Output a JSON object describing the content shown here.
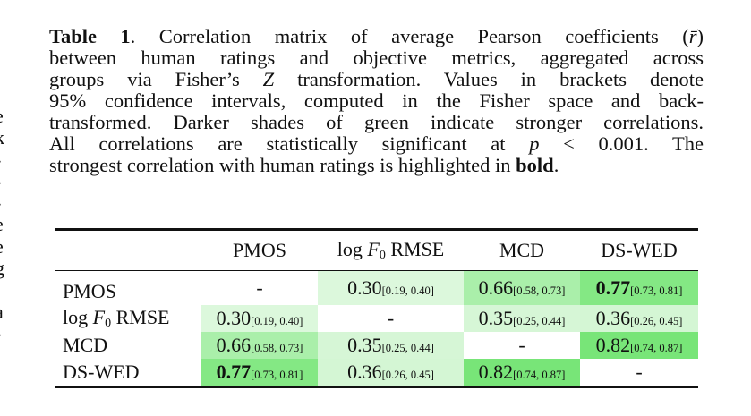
{
  "left_column_fragments": [
    "e",
    "k",
    "-",
    "-",
    "-",
    "e",
    "e",
    "g",
    "",
    "a",
    "-"
  ],
  "caption": {
    "label": "Table 1",
    "l1a": ".    Correlation matrix of average Pearson coefficients (",
    "l1r": "r̄",
    "l1b": ")",
    "l2": "between human ratings and objective metrics, aggregated across",
    "l3a": "groups via Fisher’s ",
    "l3z": "Z",
    "l3b": " transformation.  Values in brackets denote",
    "l4": "95% confidence intervals, computed in the Fisher space and back-",
    "l5": "transformed. Darker shades of green indicate stronger correlations.",
    "l6a": "All correlations are statistically significant at ",
    "l6p": "p",
    "l6b": " < 0.001.  The",
    "l7a": "strongest correlation with human ratings is highlighted in ",
    "l7bold": "bold",
    "l7c": "."
  },
  "table": {
    "headers": [
      {
        "pre": "",
        "var": "",
        "sub": "",
        "post": ""
      },
      {
        "pre": "PMOS",
        "var": "",
        "sub": "",
        "post": ""
      },
      {
        "pre": "log ",
        "var": "F",
        "sub": "0",
        "post": " RMSE"
      },
      {
        "pre": "MCD",
        "var": "",
        "sub": "",
        "post": ""
      },
      {
        "pre": "DS-WED",
        "var": "",
        "sub": "",
        "post": ""
      }
    ],
    "rows": [
      {
        "label": {
          "pre": "PMOS",
          "var": "",
          "sub": "",
          "post": ""
        },
        "cells": [
          {
            "value": "-",
            "ci": "",
            "bold": false,
            "color": "#ffffff"
          },
          {
            "value": "0.30",
            "ci": "[0.19, 0.40]",
            "bold": false,
            "color": "#dcf8dc"
          },
          {
            "value": "0.66",
            "ci": "[0.58, 0.73]",
            "bold": false,
            "color": "#aaefaa"
          },
          {
            "value": "0.77",
            "ci": "[0.73, 0.81]",
            "bold": true,
            "color": "#84e884"
          }
        ]
      },
      {
        "label": {
          "pre": "log ",
          "var": "F",
          "sub": "0",
          "post": " RMSE"
        },
        "cells": [
          {
            "value": "0.30",
            "ci": "[0.19, 0.40]",
            "bold": false,
            "color": "#dcf8dc"
          },
          {
            "value": "-",
            "ci": "",
            "bold": false,
            "color": "#ffffff"
          },
          {
            "value": "0.35",
            "ci": "[0.25, 0.44]",
            "bold": false,
            "color": "#d6f6d6"
          },
          {
            "value": "0.36",
            "ci": "[0.26, 0.45]",
            "bold": false,
            "color": "#d4f6d4"
          }
        ]
      },
      {
        "label": {
          "pre": "MCD",
          "var": "",
          "sub": "",
          "post": ""
        },
        "cells": [
          {
            "value": "0.66",
            "ci": "[0.58, 0.73]",
            "bold": false,
            "color": "#aaefaa"
          },
          {
            "value": "0.35",
            "ci": "[0.25, 0.44]",
            "bold": false,
            "color": "#d6f6d6"
          },
          {
            "value": "-",
            "ci": "",
            "bold": false,
            "color": "#ffffff"
          },
          {
            "value": "0.82",
            "ci": "[0.74, 0.87]",
            "bold": false,
            "color": "#78e578"
          }
        ]
      },
      {
        "label": {
          "pre": "DS-WED",
          "var": "",
          "sub": "",
          "post": ""
        },
        "cells": [
          {
            "value": "0.77",
            "ci": "[0.73, 0.81]",
            "bold": true,
            "color": "#84e884"
          },
          {
            "value": "0.36",
            "ci": "[0.26, 0.45]",
            "bold": false,
            "color": "#d4f6d4"
          },
          {
            "value": "0.82",
            "ci": "[0.74, 0.87]",
            "bold": false,
            "color": "#78e578"
          },
          {
            "value": "-",
            "ci": "",
            "bold": false,
            "color": "#ffffff"
          }
        ]
      }
    ]
  }
}
